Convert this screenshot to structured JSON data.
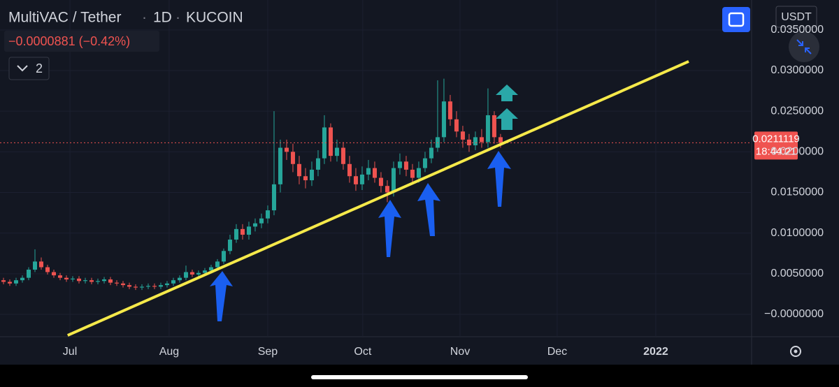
{
  "header": {
    "symbol": "MultiVAC / Tether",
    "interval": "1D",
    "exchange": "KUCOIN",
    "change": "−0.0000881 (−0.42%)",
    "indicators_count": "2",
    "currency": "USDT"
  },
  "chart_data": {
    "type": "candlestick",
    "up_color": "#26a69a",
    "down_color": "#ef5350",
    "categories": [
      null,
      null,
      null,
      null,
      null,
      null,
      null,
      null,
      null,
      null,
      null,
      null,
      null,
      null,
      null,
      null,
      null,
      null,
      null,
      null,
      null,
      null,
      null,
      null,
      null,
      null,
      null,
      null,
      null,
      null,
      null,
      null,
      null,
      null,
      null,
      null,
      null,
      null,
      null,
      null,
      null,
      null,
      null,
      null,
      null,
      null,
      null,
      null,
      null,
      null,
      null,
      null,
      null,
      null,
      null,
      null,
      null,
      null,
      null,
      null,
      null,
      null,
      null,
      null,
      null,
      null,
      null,
      null,
      null,
      null,
      null,
      null,
      null,
      null,
      null,
      null,
      null,
      null,
      null,
      null
    ],
    "open": [
      0.0042,
      0.004,
      0.0038,
      0.0042,
      0.0045,
      0.0055,
      0.0065,
      0.0058,
      0.0052,
      0.0048,
      0.0045,
      0.0043,
      0.0044,
      0.0041,
      0.0042,
      0.004,
      0.0041,
      0.0043,
      0.0039,
      0.0038,
      0.0036,
      0.0034,
      0.0033,
      0.0034,
      0.0035,
      0.0034,
      0.0036,
      0.0038,
      0.0042,
      0.0045,
      0.0052,
      0.0049,
      0.0051,
      0.0054,
      0.0058,
      0.0065,
      0.0078,
      0.0092,
      0.0105,
      0.0098,
      0.0108,
      0.0112,
      0.0118,
      0.0128,
      0.016,
      0.0205,
      0.02,
      0.0185,
      0.017,
      0.0165,
      0.0178,
      0.0192,
      0.023,
      0.0195,
      0.0205,
      0.0185,
      0.017,
      0.016,
      0.0172,
      0.018,
      0.0168,
      0.0158,
      0.015,
      0.018,
      0.0188,
      0.0178,
      0.0168,
      0.018,
      0.0192,
      0.0205,
      0.0218,
      0.0262,
      0.024,
      0.0225,
      0.0215,
      0.0208,
      0.0218,
      0.0212,
      0.0245,
      0.0218
    ],
    "high": [
      0.0045,
      0.0043,
      0.0045,
      0.0048,
      0.0058,
      0.008,
      0.007,
      0.0061,
      0.0055,
      0.0051,
      0.0048,
      0.0047,
      0.0047,
      0.0045,
      0.0045,
      0.0044,
      0.0046,
      0.0046,
      0.0042,
      0.0041,
      0.0039,
      0.0037,
      0.0037,
      0.0038,
      0.0038,
      0.0039,
      0.0041,
      0.0045,
      0.0048,
      0.006,
      0.0055,
      0.0054,
      0.0057,
      0.0061,
      0.0068,
      0.0081,
      0.0098,
      0.0111,
      0.0111,
      0.0114,
      0.0118,
      0.0124,
      0.0134,
      0.025,
      0.0215,
      0.0215,
      0.021,
      0.0195,
      0.018,
      0.0188,
      0.0202,
      0.0245,
      0.0235,
      0.0215,
      0.0212,
      0.0195,
      0.018,
      0.0182,
      0.019,
      0.0188,
      0.0175,
      0.0165,
      0.0188,
      0.0198,
      0.0195,
      0.0185,
      0.0188,
      0.02,
      0.0215,
      0.0288,
      0.029,
      0.027,
      0.025,
      0.0232,
      0.0222,
      0.0225,
      0.0228,
      0.0278,
      0.025,
      0.0222
    ],
    "low": [
      0.0037,
      0.0035,
      0.0035,
      0.0039,
      0.0042,
      0.0052,
      0.0055,
      0.0049,
      0.0045,
      0.0042,
      0.004,
      0.004,
      0.0038,
      0.0038,
      0.0037,
      0.0037,
      0.0038,
      0.0036,
      0.0035,
      0.0033,
      0.0031,
      0.003,
      0.003,
      0.0031,
      0.0031,
      0.0031,
      0.0033,
      0.0035,
      0.0039,
      0.0042,
      0.0046,
      0.0046,
      0.0048,
      0.0051,
      0.0055,
      0.0062,
      0.0074,
      0.0088,
      0.0092,
      0.0092,
      0.0102,
      0.0106,
      0.0112,
      0.0122,
      0.015,
      0.019,
      0.0175,
      0.016,
      0.0155,
      0.0158,
      0.017,
      0.0185,
      0.0188,
      0.0188,
      0.0178,
      0.0162,
      0.0152,
      0.0153,
      0.0165,
      0.0162,
      0.015,
      0.0138,
      0.0145,
      0.0172,
      0.017,
      0.016,
      0.0162,
      0.0175,
      0.0186,
      0.02,
      0.0212,
      0.0232,
      0.0218,
      0.0205,
      0.02,
      0.0202,
      0.0205,
      0.0205,
      0.021,
      0.0205
    ],
    "close": [
      0.004,
      0.0038,
      0.0042,
      0.0045,
      0.0055,
      0.0065,
      0.0058,
      0.0052,
      0.0048,
      0.0045,
      0.0043,
      0.0044,
      0.0041,
      0.0042,
      0.004,
      0.0041,
      0.0043,
      0.0039,
      0.0038,
      0.0036,
      0.0034,
      0.0033,
      0.0034,
      0.0035,
      0.0034,
      0.0036,
      0.0038,
      0.0042,
      0.0045,
      0.0052,
      0.0049,
      0.0051,
      0.0054,
      0.0058,
      0.0065,
      0.0078,
      0.0092,
      0.0105,
      0.0098,
      0.0108,
      0.0112,
      0.0118,
      0.0128,
      0.016,
      0.0205,
      0.02,
      0.0185,
      0.017,
      0.0165,
      0.0178,
      0.0192,
      0.023,
      0.0195,
      0.0205,
      0.0185,
      0.017,
      0.016,
      0.0172,
      0.018,
      0.0168,
      0.0158,
      0.015,
      0.018,
      0.0188,
      0.0178,
      0.0168,
      0.018,
      0.0192,
      0.0205,
      0.0218,
      0.0262,
      0.024,
      0.0225,
      0.0215,
      0.0208,
      0.0218,
      0.0212,
      0.0245,
      0.0218,
      0.0211
    ],
    "xlim": [
      -0.556,
      118.9
    ],
    "xticks": [
      {
        "value": 10.56,
        "label": "Jul"
      },
      {
        "value": 26.33,
        "label": "Aug"
      },
      {
        "value": 42.0,
        "label": "Sep"
      },
      {
        "value": 57.1,
        "label": "Oct"
      },
      {
        "value": 72.56,
        "label": "Nov"
      },
      {
        "value": 88.0,
        "label": "Dec"
      },
      {
        "value": 103.67,
        "label": "2022"
      }
    ],
    "ylim": [
      -0.00275,
      0.03868
    ],
    "yticks": [
      {
        "value": 0.035,
        "label": "0.0350000"
      },
      {
        "value": 0.03,
        "label": "0.0300000"
      },
      {
        "value": 0.025,
        "label": "0.0250000"
      },
      {
        "value": 0.02,
        "label": "0.0200000"
      },
      {
        "value": 0.015,
        "label": "0.0150000"
      },
      {
        "value": 0.01,
        "label": "0.0100000"
      },
      {
        "value": 0.005,
        "label": "0.0050000"
      },
      {
        "value": 0,
        "label": "−0.0000000"
      }
    ],
    "last_price": 0.0211119,
    "countdown": "18:44:21",
    "trendline": {
      "x": [
        10.2,
        108.9
      ],
      "y": [
        -0.00258,
        0.03112
      ],
      "color": "#f5e94a"
    },
    "grid": true
  }
}
